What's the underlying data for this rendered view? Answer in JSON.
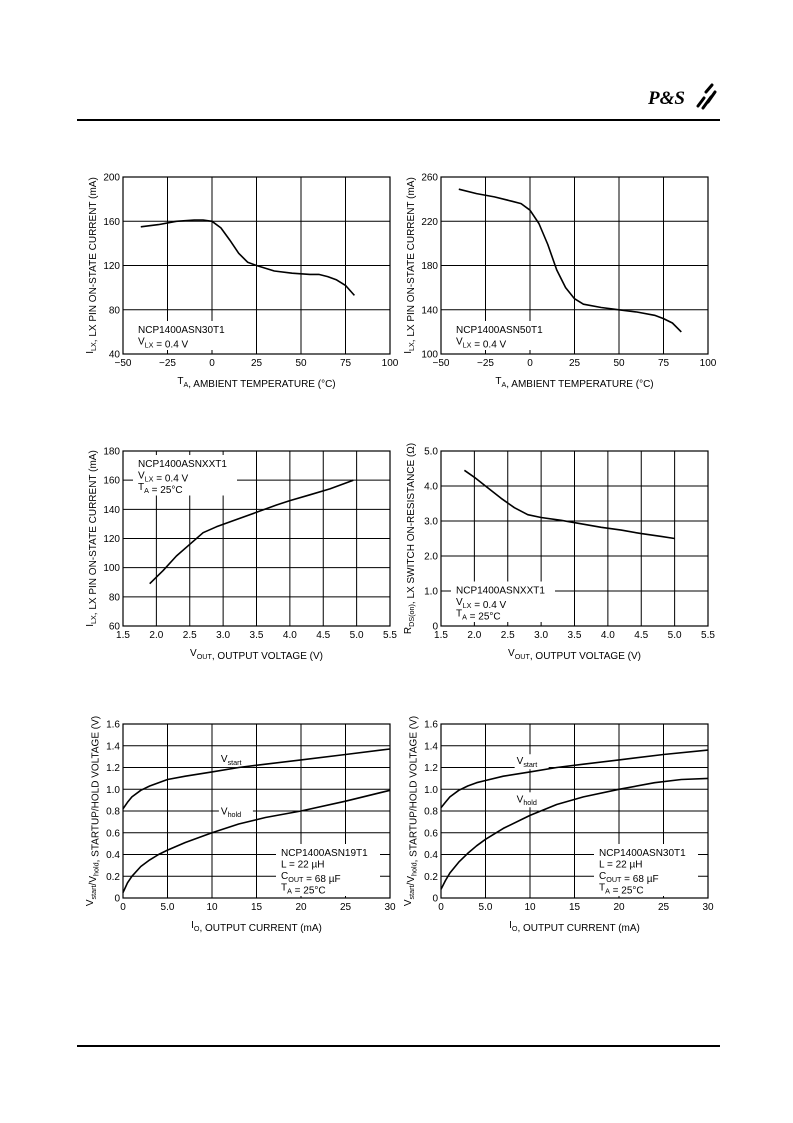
{
  "header": {
    "logo_text": "P&S"
  },
  "chart_data": [
    {
      "type": "line",
      "xlabel": "T_A, AMBIENT TEMPERATURE (°C)",
      "xlabel_parts": [
        [
          "T",
          ""
        ],
        [
          "A",
          "sub"
        ],
        [
          ", AMBIENT TEMPERATURE (°C)",
          ""
        ]
      ],
      "ylabel": "I_LX, LX PIN ON-STATE CURRENT (mA)",
      "ylabel_parts": [
        [
          "I",
          ""
        ],
        [
          "LX",
          "sub"
        ],
        [
          ", LX PIN ON-STATE CURRENT (mA)",
          ""
        ]
      ],
      "xlim": [
        -50,
        100
      ],
      "ylim": [
        40,
        200
      ],
      "xticks": [
        -50,
        -25,
        0,
        25,
        50,
        75,
        100
      ],
      "xtick_labels": [
        "−50",
        "−25",
        "0",
        "25",
        "50",
        "75",
        "100"
      ],
      "yticks": [
        40,
        80,
        120,
        160,
        200
      ],
      "ytick_labels": [
        "40",
        "80",
        "120",
        "160",
        "200"
      ],
      "grid": true,
      "annotation": {
        "position": "bottom-left",
        "lines": [
          [
            [
              "NCP1400ASN30T1",
              ""
            ]
          ],
          [
            [
              "V",
              ""
            ],
            [
              "LX",
              "sub"
            ],
            [
              " = 0.4 V",
              ""
            ]
          ]
        ]
      },
      "series": [
        {
          "x": [
            -40,
            -30,
            -20,
            -10,
            -5,
            0,
            5,
            10,
            15,
            20,
            25,
            35,
            45,
            55,
            60,
            65,
            70,
            75,
            80
          ],
          "y": [
            155,
            157,
            160,
            161,
            161,
            160,
            154,
            143,
            131,
            123,
            120,
            115,
            113,
            112,
            112,
            110,
            107,
            102,
            93
          ]
        }
      ]
    },
    {
      "type": "line",
      "xlabel": "T_A, AMBIENT TEMPERATURE (°C)",
      "xlabel_parts": [
        [
          "T",
          ""
        ],
        [
          "A",
          "sub"
        ],
        [
          ", AMBIENT TEMPERATURE (°C)",
          ""
        ]
      ],
      "ylabel": "I_LX, LX PIN ON-STATE CURRENT (mA)",
      "ylabel_parts": [
        [
          "I",
          ""
        ],
        [
          "LX",
          "sub"
        ],
        [
          ", LX PIN ON-STATE CURRENT (mA)",
          ""
        ]
      ],
      "xlim": [
        -50,
        100
      ],
      "ylim": [
        100,
        260
      ],
      "xticks": [
        -50,
        -25,
        0,
        25,
        50,
        75,
        100
      ],
      "xtick_labels": [
        "−50",
        "−25",
        "0",
        "25",
        "50",
        "75",
        "100"
      ],
      "yticks": [
        100,
        140,
        180,
        220,
        260
      ],
      "ytick_labels": [
        "100",
        "140",
        "180",
        "220",
        "260"
      ],
      "grid": true,
      "annotation": {
        "position": "bottom-left",
        "lines": [
          [
            [
              "NCP1400ASN50T1",
              ""
            ]
          ],
          [
            [
              "V",
              ""
            ],
            [
              "LX",
              "sub"
            ],
            [
              " = 0.4 V",
              ""
            ]
          ]
        ]
      },
      "series": [
        {
          "x": [
            -40,
            -30,
            -20,
            -10,
            -5,
            0,
            5,
            10,
            15,
            20,
            25,
            30,
            40,
            50,
            60,
            70,
            75,
            80,
            85
          ],
          "y": [
            249,
            245,
            242,
            238,
            236,
            230,
            218,
            199,
            176,
            160,
            150,
            145,
            142,
            140,
            138,
            135,
            132,
            128,
            120
          ]
        }
      ]
    },
    {
      "type": "line",
      "xlabel": "V_OUT, OUTPUT VOLTAGE (V)",
      "xlabel_parts": [
        [
          "V",
          ""
        ],
        [
          "OUT",
          "sub"
        ],
        [
          ", OUTPUT VOLTAGE (V)",
          ""
        ]
      ],
      "ylabel": "I_LX, LX PIN ON-STATE CURRENT (mA)",
      "ylabel_parts": [
        [
          "I",
          ""
        ],
        [
          "LX",
          "sub"
        ],
        [
          ", LX PIN ON-STATE CURRENT (mA)",
          ""
        ]
      ],
      "xlim": [
        1.5,
        5.5
      ],
      "ylim": [
        60,
        180
      ],
      "xticks": [
        1.5,
        2.0,
        2.5,
        3.0,
        3.5,
        4.0,
        4.5,
        5.0,
        5.5
      ],
      "xtick_labels": [
        "1.5",
        "2.0",
        "2.5",
        "3.0",
        "3.5",
        "4.0",
        "4.5",
        "5.0",
        "5.5"
      ],
      "yticks": [
        60,
        80,
        100,
        120,
        140,
        160,
        180
      ],
      "ytick_labels": [
        "60",
        "80",
        "100",
        "120",
        "140",
        "160",
        "180"
      ],
      "grid": true,
      "annotation": {
        "position": "top-left",
        "lines": [
          [
            [
              "NCP1400ASNXXT1",
              ""
            ]
          ],
          [
            [
              "V",
              ""
            ],
            [
              "LX",
              "sub"
            ],
            [
              " = 0.4 V",
              ""
            ]
          ],
          [
            [
              "T",
              ""
            ],
            [
              "A",
              "sub"
            ],
            [
              " = 25°C",
              ""
            ]
          ]
        ]
      },
      "series": [
        {
          "x": [
            1.9,
            2.1,
            2.3,
            2.5,
            2.7,
            2.9,
            3.2,
            3.5,
            3.8,
            4.0,
            4.3,
            4.6,
            4.95
          ],
          "y": [
            89,
            98,
            108,
            116,
            124,
            128,
            133,
            138,
            143,
            146,
            150,
            154,
            160
          ]
        }
      ]
    },
    {
      "type": "line",
      "xlabel": "V_OUT, OUTPUT VOLTAGE (V)",
      "xlabel_parts": [
        [
          "V",
          ""
        ],
        [
          "OUT",
          "sub"
        ],
        [
          ", OUTPUT VOLTAGE (V)",
          ""
        ]
      ],
      "ylabel": "R_DS(on), LX SWITCH ON-RESISTANCE (Ω)",
      "ylabel_parts": [
        [
          "R",
          ""
        ],
        [
          "DS(on)",
          "sub"
        ],
        [
          ", LX SWITCH ON-RESISTANCE (Ω)",
          ""
        ]
      ],
      "xlim": [
        1.5,
        5.5
      ],
      "ylim": [
        0,
        5.0
      ],
      "xticks": [
        1.5,
        2.0,
        2.5,
        3.0,
        3.5,
        4.0,
        4.5,
        5.0,
        5.5
      ],
      "xtick_labels": [
        "1.5",
        "2.0",
        "2.5",
        "3.0",
        "3.5",
        "4.0",
        "4.5",
        "5.0",
        "5.5"
      ],
      "yticks": [
        0,
        1.0,
        2.0,
        3.0,
        4.0,
        5.0
      ],
      "ytick_labels": [
        "0",
        "1.0",
        "2.0",
        "3.0",
        "4.0",
        "5.0"
      ],
      "grid": true,
      "annotation": {
        "position": "bottom-left",
        "lines": [
          [
            [
              "NCP1400ASNXXT1",
              ""
            ]
          ],
          [
            [
              "V",
              ""
            ],
            [
              "LX",
              "sub"
            ],
            [
              " = 0.4 V",
              ""
            ]
          ],
          [
            [
              "T",
              ""
            ],
            [
              "A",
              "sub"
            ],
            [
              " = 25°C",
              ""
            ]
          ]
        ]
      },
      "series": [
        {
          "x": [
            1.85,
            2.0,
            2.2,
            2.4,
            2.6,
            2.8,
            3.0,
            3.3,
            3.6,
            3.9,
            4.2,
            4.5,
            4.8,
            5.0
          ],
          "y": [
            4.45,
            4.25,
            3.95,
            3.65,
            3.38,
            3.18,
            3.1,
            3.02,
            2.92,
            2.82,
            2.74,
            2.64,
            2.56,
            2.5
          ]
        }
      ]
    },
    {
      "type": "line",
      "xlabel": "I_O, OUTPUT CURRENT (mA)",
      "xlabel_parts": [
        [
          "I",
          ""
        ],
        [
          "O",
          "sub"
        ],
        [
          ", OUTPUT CURRENT (mA)",
          ""
        ]
      ],
      "ylabel": "V_start/V_hold, STARTUP/HOLD VOLTAGE (V)",
      "ylabel_parts": [
        [
          "V",
          ""
        ],
        [
          "start",
          "sub"
        ],
        [
          "/V",
          ""
        ],
        [
          "hold",
          "sub"
        ],
        [
          ", STARTUP/HOLD VOLTAGE (V)",
          ""
        ]
      ],
      "xlim": [
        0,
        30
      ],
      "ylim": [
        0,
        1.6
      ],
      "xticks": [
        0,
        5,
        10,
        15,
        20,
        25,
        30
      ],
      "xtick_labels": [
        "0",
        "5.0",
        "10",
        "15",
        "20",
        "25",
        "30"
      ],
      "yticks": [
        0,
        0.2,
        0.4,
        0.6,
        0.8,
        1.0,
        1.2,
        1.4,
        1.6
      ],
      "ytick_labels": [
        "0",
        "0.2",
        "0.4",
        "0.6",
        "0.8",
        "1.0",
        "1.2",
        "1.4",
        "1.6"
      ],
      "grid": true,
      "annotation": {
        "position": "bottom-right",
        "lines": [
          [
            [
              "NCP1400ASN19T1",
              ""
            ]
          ],
          [
            [
              "L = 22 µH",
              ""
            ]
          ],
          [
            [
              "C",
              ""
            ],
            [
              "OUT",
              "sub"
            ],
            [
              " = 68 µF",
              ""
            ]
          ],
          [
            [
              "T",
              ""
            ],
            [
              "A",
              "sub"
            ],
            [
              " = 25°C",
              ""
            ]
          ]
        ]
      },
      "series_labels": [
        {
          "parts": [
            [
              "V",
              ""
            ],
            [
              "start",
              "sub"
            ]
          ],
          "x": 11,
          "y": 1.25
        },
        {
          "parts": [
            [
              "V",
              ""
            ],
            [
              "hold",
              "sub"
            ]
          ],
          "x": 11,
          "y": 0.77
        }
      ],
      "series": [
        {
          "x": [
            0,
            0.5,
            1,
            2,
            3,
            4,
            5,
            7,
            10,
            13,
            16,
            20,
            25,
            30
          ],
          "y": [
            0.82,
            0.88,
            0.93,
            0.99,
            1.03,
            1.06,
            1.09,
            1.12,
            1.16,
            1.2,
            1.23,
            1.27,
            1.32,
            1.37
          ]
        },
        {
          "x": [
            0,
            0.5,
            1,
            2,
            3,
            4,
            5,
            7,
            10,
            13,
            16,
            20,
            25,
            30
          ],
          "y": [
            0.05,
            0.14,
            0.2,
            0.29,
            0.35,
            0.4,
            0.44,
            0.51,
            0.6,
            0.68,
            0.74,
            0.8,
            0.89,
            0.99
          ]
        }
      ]
    },
    {
      "type": "line",
      "xlabel": "I_O, OUTPUT CURRENT (mA)",
      "xlabel_parts": [
        [
          "I",
          ""
        ],
        [
          "O",
          "sub"
        ],
        [
          ", OUTPUT CURRENT (mA)",
          ""
        ]
      ],
      "ylabel": "V_start/V_hold, STARTUP/HOLD VOLTAGE (V)",
      "ylabel_parts": [
        [
          "V",
          ""
        ],
        [
          "start",
          "sub"
        ],
        [
          "/V",
          ""
        ],
        [
          "hold",
          "sub"
        ],
        [
          ", STARTUP/HOLD VOLTAGE (V)",
          ""
        ]
      ],
      "xlim": [
        0,
        30
      ],
      "ylim": [
        0,
        1.6
      ],
      "xticks": [
        0,
        5,
        10,
        15,
        20,
        25,
        30
      ],
      "xtick_labels": [
        "0",
        "5.0",
        "10",
        "15",
        "20",
        "25",
        "30"
      ],
      "yticks": [
        0,
        0.2,
        0.4,
        0.6,
        0.8,
        1.0,
        1.2,
        1.4,
        1.6
      ],
      "ytick_labels": [
        "0",
        "0.2",
        "0.4",
        "0.6",
        "0.8",
        "1.0",
        "1.2",
        "1.4",
        "1.6"
      ],
      "grid": true,
      "annotation": {
        "position": "bottom-right",
        "lines": [
          [
            [
              "NCP1400ASN30T1",
              ""
            ]
          ],
          [
            [
              "L = 22 µH",
              ""
            ]
          ],
          [
            [
              "C",
              ""
            ],
            [
              "OUT",
              "sub"
            ],
            [
              " = 68 µF",
              ""
            ]
          ],
          [
            [
              "T",
              ""
            ],
            [
              "A",
              "sub"
            ],
            [
              " = 25°C",
              ""
            ]
          ]
        ]
      },
      "series_labels": [
        {
          "parts": [
            [
              "V",
              ""
            ],
            [
              "start",
              "sub"
            ]
          ],
          "x": 8.5,
          "y": 1.23
        },
        {
          "parts": [
            [
              "V",
              ""
            ],
            [
              "hold",
              "sub"
            ]
          ],
          "x": 8.5,
          "y": 0.88
        }
      ],
      "series": [
        {
          "x": [
            0,
            0.5,
            1,
            2,
            3,
            4,
            5,
            7,
            10,
            13,
            16,
            20,
            25,
            30
          ],
          "y": [
            0.83,
            0.88,
            0.93,
            0.99,
            1.03,
            1.06,
            1.08,
            1.12,
            1.16,
            1.2,
            1.23,
            1.27,
            1.32,
            1.36
          ]
        },
        {
          "x": [
            0,
            0.5,
            1,
            2,
            3,
            4,
            5,
            7,
            10,
            13,
            16,
            20,
            24,
            27,
            30
          ],
          "y": [
            0.08,
            0.16,
            0.23,
            0.33,
            0.41,
            0.48,
            0.54,
            0.64,
            0.76,
            0.86,
            0.93,
            1.0,
            1.06,
            1.09,
            1.1
          ]
        }
      ]
    }
  ]
}
